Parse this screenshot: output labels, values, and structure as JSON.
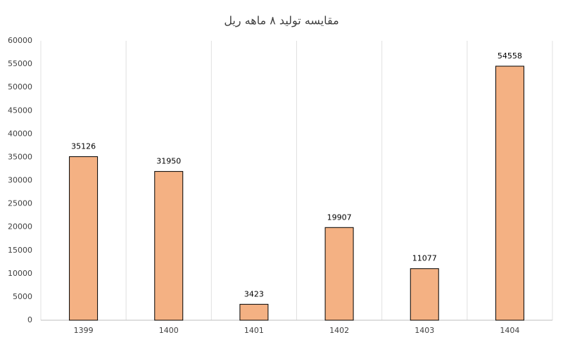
{
  "chart_data": {
    "type": "bar",
    "title": "مقایسه تولید ۸ ماهه ریل",
    "categories": [
      "1399",
      "1400",
      "1401",
      "1402",
      "1403",
      "1404"
    ],
    "values": [
      35126,
      31950,
      3423,
      19907,
      11077,
      54558
    ],
    "color": "#f4b183",
    "ylim": [
      0,
      60000
    ],
    "yticks": [
      0,
      5000,
      10000,
      15000,
      20000,
      25000,
      30000,
      35000,
      40000,
      45000,
      50000,
      55000,
      60000
    ],
    "grid": false
  }
}
